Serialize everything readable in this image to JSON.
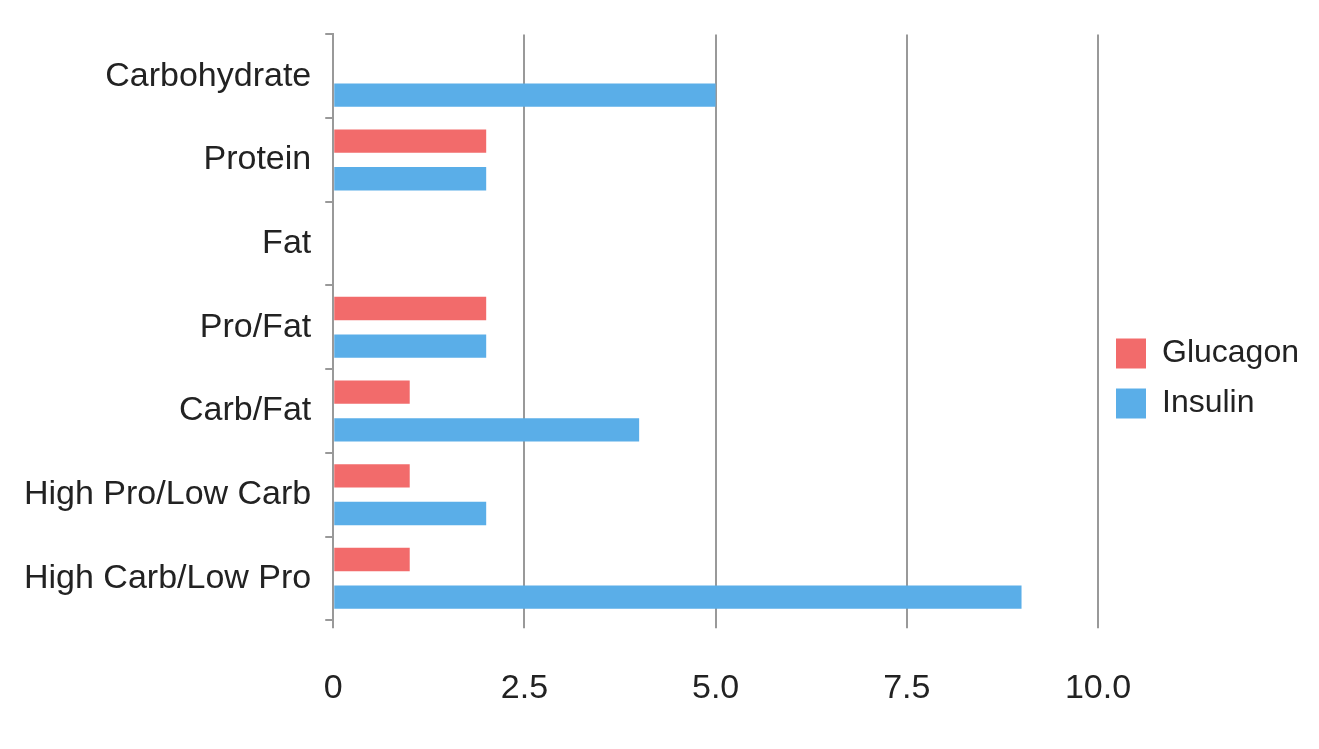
{
  "chart_data": {
    "type": "bar",
    "orientation": "horizontal",
    "categories": [
      "Carbohydrate",
      "Protein",
      "Fat",
      "Pro/Fat",
      "Carb/Fat",
      "High Pro/Low Carb",
      "High Carb/Low Pro"
    ],
    "series": [
      {
        "name": "Glucagon",
        "color": "#f26b6b",
        "values": [
          0,
          2,
          0,
          2,
          1,
          1,
          1
        ]
      },
      {
        "name": "Insulin",
        "color": "#5aaee8",
        "values": [
          5,
          2,
          0,
          2,
          4,
          2,
          9
        ]
      }
    ],
    "xlim": [
      0,
      10
    ],
    "xticks": [
      0,
      2.5,
      {
        "value": 5,
        "label": "5.0"
      },
      {
        "value": 7.5,
        "label": "7.5"
      },
      {
        "value": 10,
        "label": "10.0"
      }
    ],
    "grid": "x",
    "legend": "right"
  }
}
